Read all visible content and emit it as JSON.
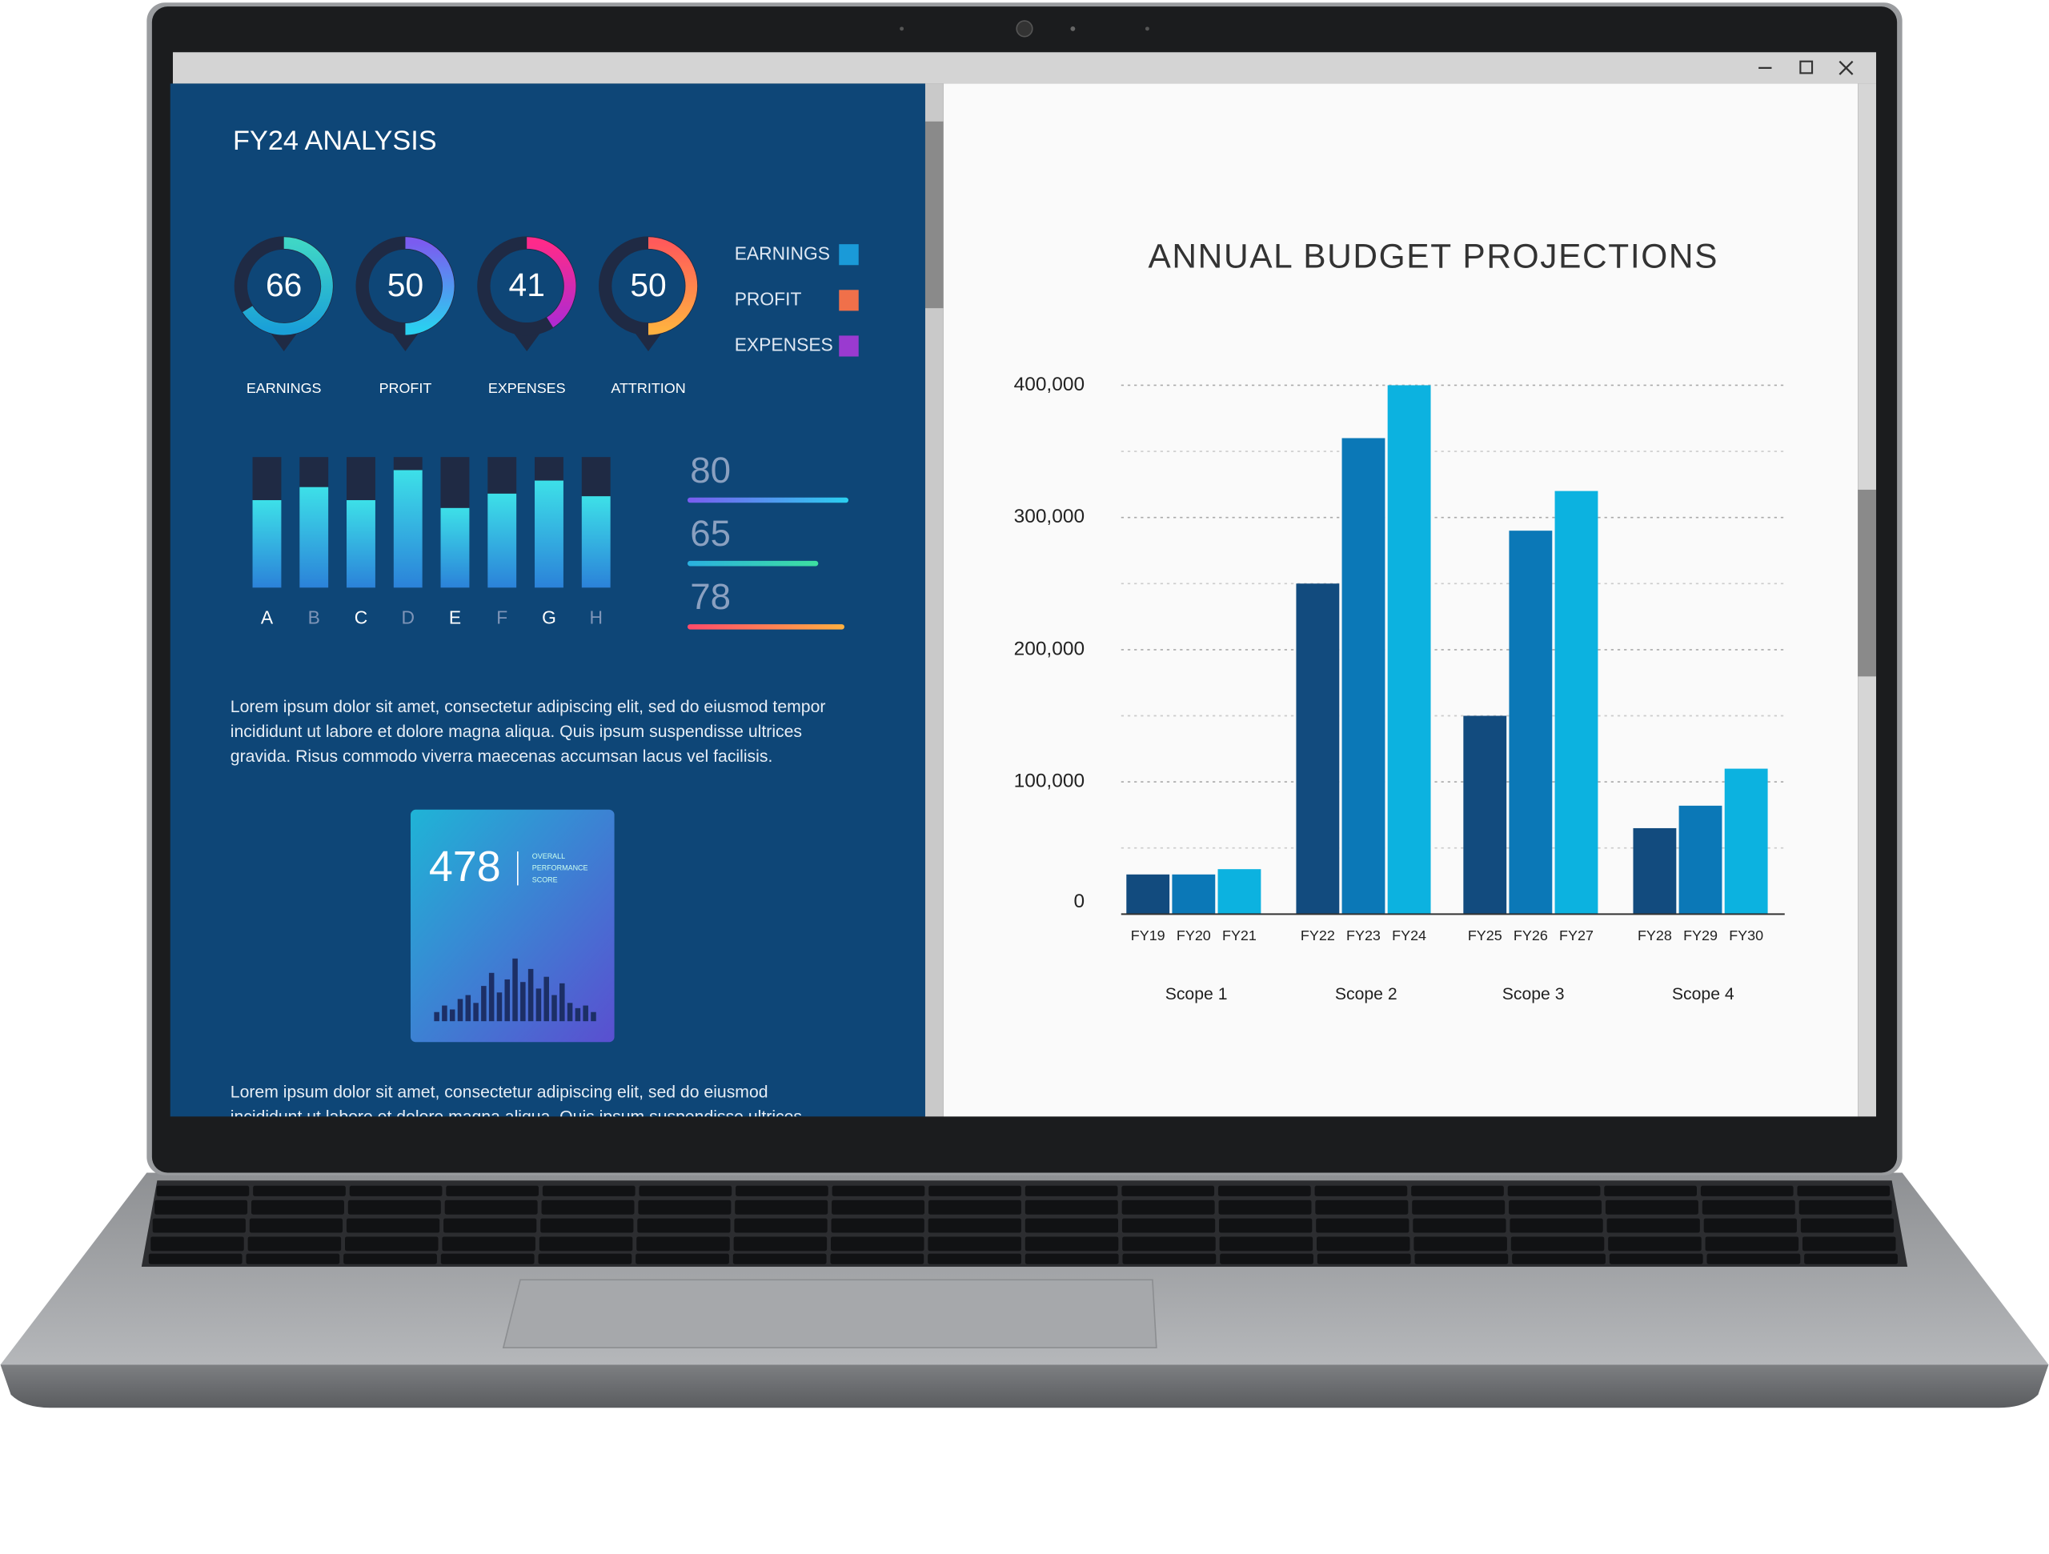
{
  "dashboard": {
    "title": "FY24 ANALYSIS",
    "gauges": [
      {
        "label": "EARNINGS",
        "value": 66,
        "colors": [
          "#3fd6c6",
          "#1aa0d8"
        ]
      },
      {
        "label": "PROFIT",
        "value": 50,
        "colors": [
          "#7b5cf0",
          "#2ad0f0"
        ]
      },
      {
        "label": "EXPENSES",
        "value": 41,
        "colors": [
          "#ff2a8a",
          "#b02ad0"
        ]
      },
      {
        "label": "ATTRITION",
        "value": 50,
        "colors": [
          "#ff5a5a",
          "#ffb040"
        ]
      }
    ],
    "legend": [
      {
        "name": "EARNINGS",
        "color": "#1a9ad8"
      },
      {
        "name": "PROFIT",
        "color": "#f0704a"
      },
      {
        "name": "EXPENSES",
        "color": "#9a3ad0"
      }
    ],
    "mini_bars": {
      "categories": [
        "A",
        "B",
        "C",
        "D",
        "E",
        "F",
        "G",
        "H"
      ],
      "values": [
        67,
        77,
        67,
        90,
        61,
        72,
        82,
        70
      ],
      "ylim": [
        0,
        100
      ]
    },
    "metrics": [
      {
        "value": 80,
        "colors": [
          "#7a5cf0",
          "#2ad0f0"
        ]
      },
      {
        "value": 65,
        "colors": [
          "#2ab0e0",
          "#3de0a0"
        ]
      },
      {
        "value": 78,
        "colors": [
          "#ff4a6a",
          "#ffb040"
        ]
      }
    ],
    "metrics_max": 100,
    "paragraph1": [
      "Lorem ipsum dolor sit amet, consectetur adipiscing elit, sed do eiusmod tempor",
      "incididunt ut labore et dolore magna aliqua. Quis ipsum suspendisse ultrices",
      "gravida. Risus commodo viverra maecenas accumsan lacus vel facilisis."
    ],
    "score": {
      "value": 478,
      "label": [
        "OVERALL",
        "PERFORMANCE",
        "SCORE"
      ]
    },
    "paragraph2": [
      "Lorem ipsum dolor sit amet, consectetur adipiscing elit, sed do eiusmod",
      "incididunt ut labore et dolore magna aliqua. Quis ipsum suspendisse ultrices"
    ]
  },
  "budget_chart": {
    "type": "bar",
    "title": "ANNUAL BUDGET PROJECTIONS",
    "groups": [
      "Scope 1",
      "Scope 2",
      "Scope 3",
      "Scope 4"
    ],
    "categories": [
      "FY19",
      "FY20",
      "FY21",
      "FY22",
      "FY23",
      "FY24",
      "FY25",
      "FY26",
      "FY27",
      "FY28",
      "FY29",
      "FY30"
    ],
    "values": [
      30000,
      30000,
      34000,
      250000,
      360000,
      400000,
      150000,
      290000,
      320000,
      65000,
      82000,
      110000
    ],
    "bar_colors": [
      "#124b7e",
      "#0b78b7",
      "#0cb2e0"
    ],
    "ylim": [
      0,
      400000
    ],
    "yticks": [
      {
        "value": 0,
        "label": "0"
      },
      {
        "value": 100000,
        "label": "100,000"
      },
      {
        "value": 200000,
        "label": "200,000"
      },
      {
        "value": 300000,
        "label": "300,000"
      },
      {
        "value": 400000,
        "label": "400,000"
      }
    ],
    "grid": true
  }
}
